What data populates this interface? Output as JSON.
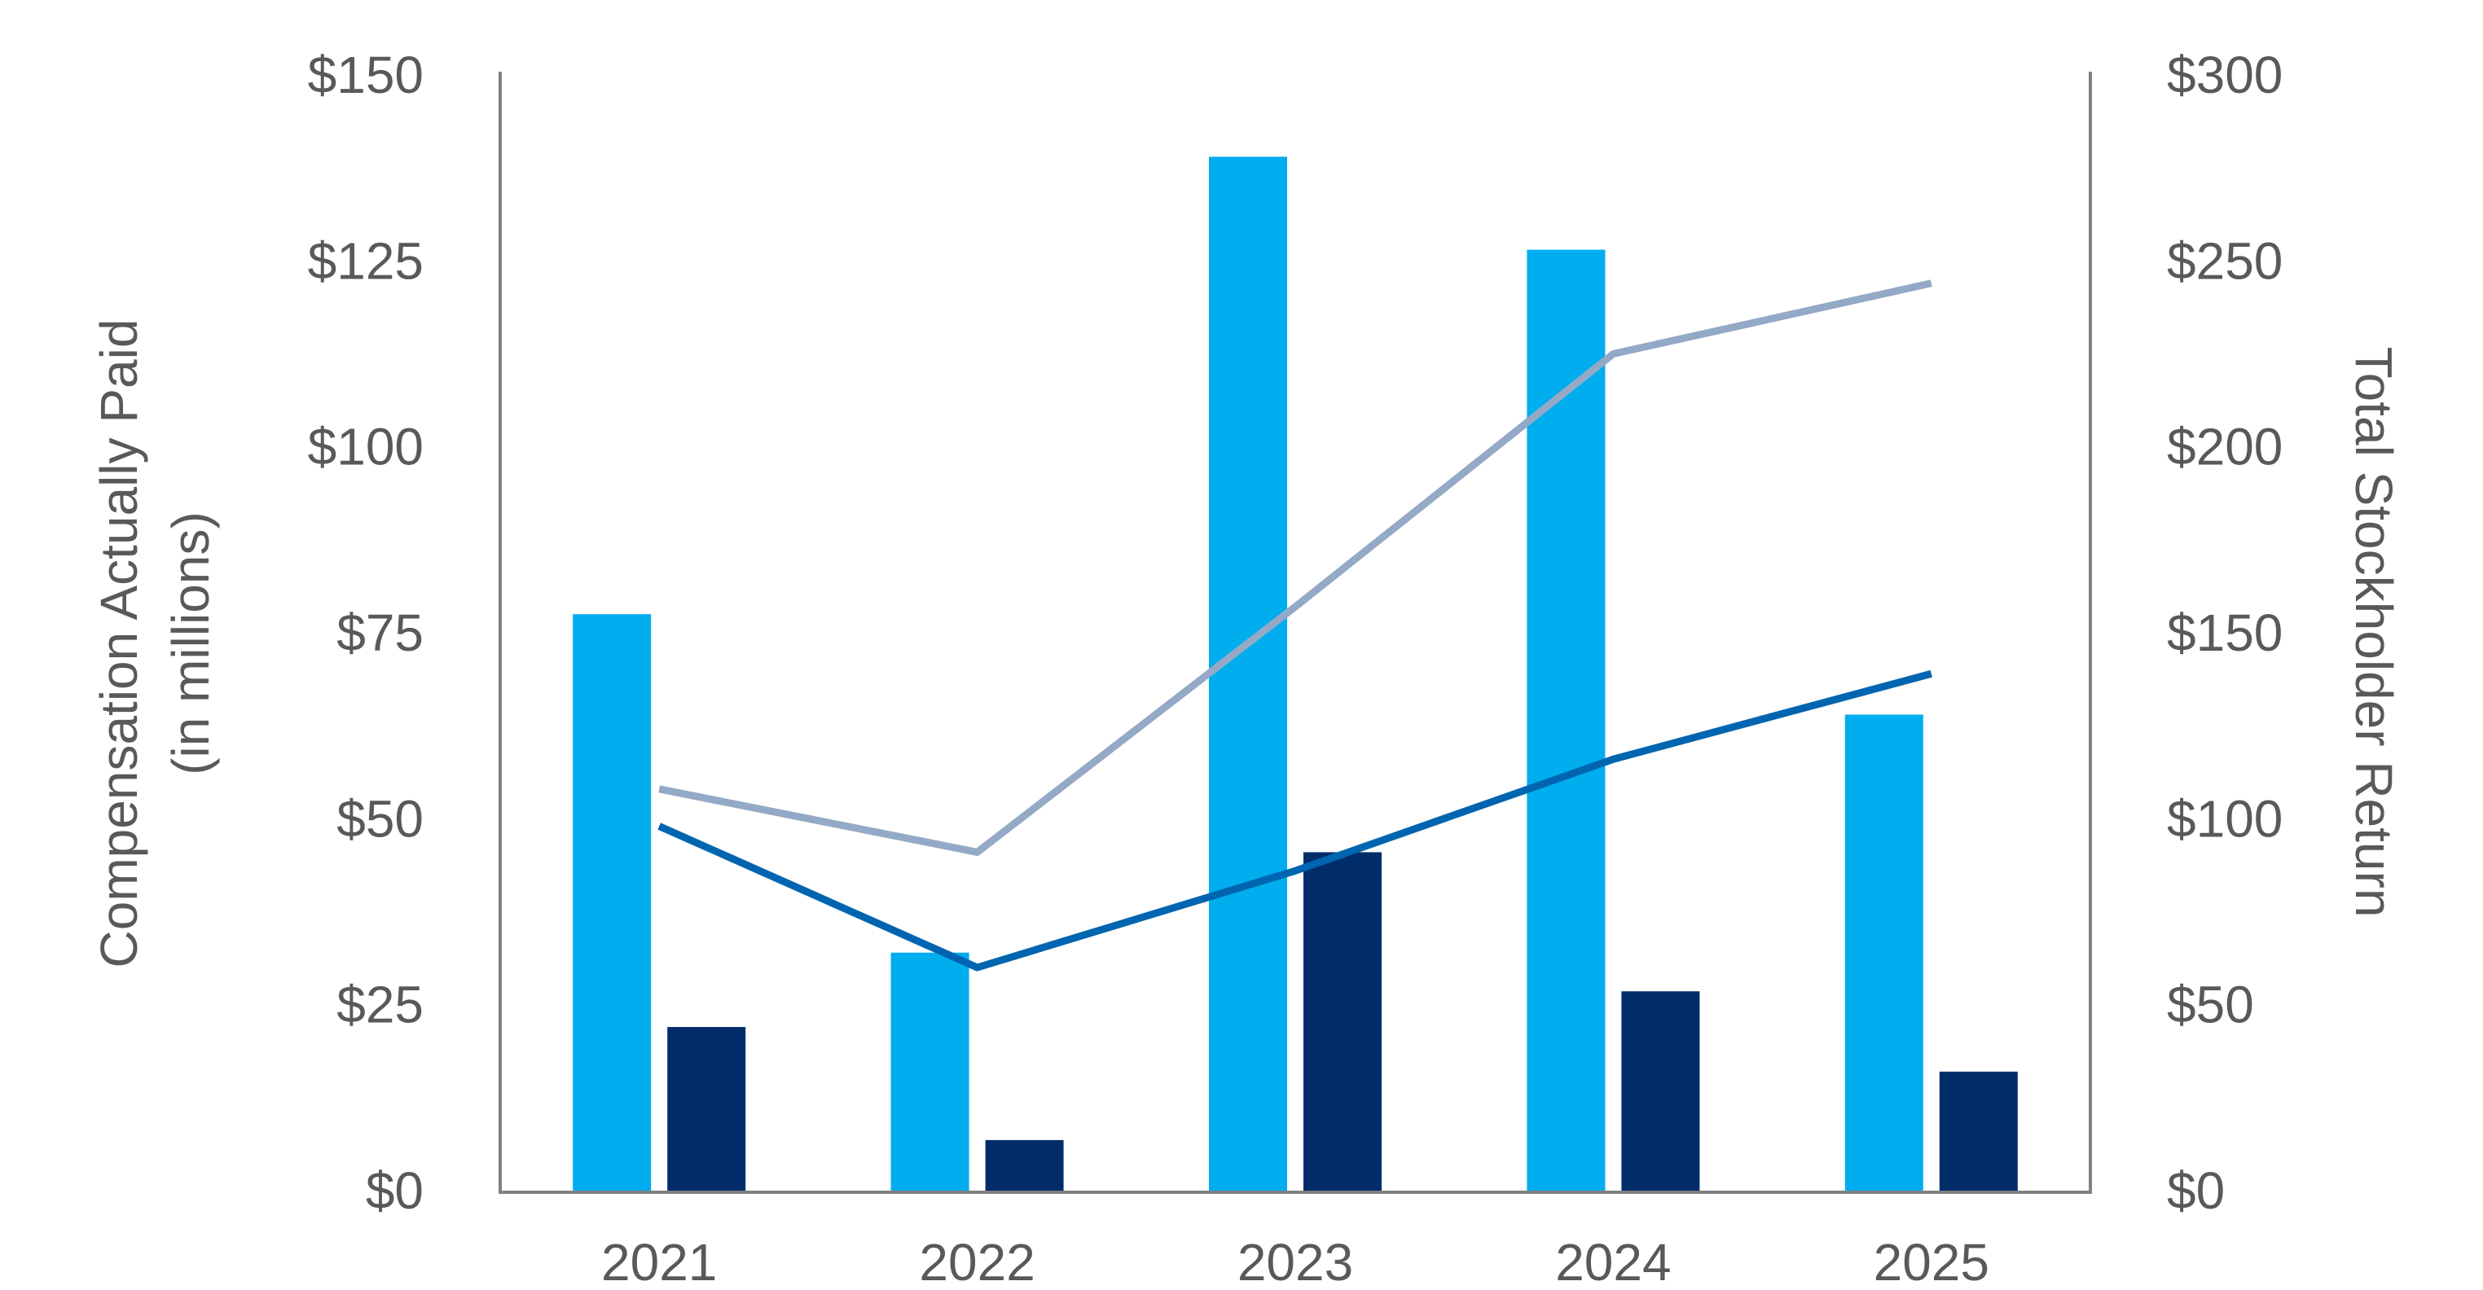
{
  "chart_data": {
    "type": "bar",
    "categories": [
      "2021",
      "2022",
      "2023",
      "2024",
      "2025"
    ],
    "series": [
      {
        "kind": "bar",
        "axis": "left",
        "color": "#00ADEF",
        "values": [
          77.5,
          32.0,
          139.0,
          126.5,
          64.0
        ]
      },
      {
        "kind": "bar",
        "axis": "left",
        "color": "#002D6A",
        "values": [
          22.0,
          6.8,
          45.5,
          26.8,
          16.0
        ]
      },
      {
        "kind": "line",
        "axis": "right",
        "color": "#94A9C6",
        "values": [
          108,
          91,
          157,
          225,
          244
        ]
      },
      {
        "kind": "line",
        "axis": "right",
        "color": "#0065B0",
        "values": [
          98,
          60,
          86,
          116,
          139
        ]
      }
    ],
    "y_left": {
      "label_line1": "Compensation Actually Paid",
      "label_line2": "(in millions)",
      "ylim": [
        0,
        150
      ],
      "ticks": [
        0,
        25,
        50,
        75,
        100,
        125,
        150
      ],
      "tick_labels": [
        "$0",
        "$25",
        "$50",
        "$75",
        "$100",
        "$125",
        "$150"
      ]
    },
    "y_right": {
      "label": "Total Stockholder Return",
      "ylim": [
        0,
        300
      ],
      "ticks": [
        0,
        50,
        100,
        150,
        200,
        250,
        300
      ],
      "tick_labels": [
        "$0",
        "$50",
        "$100",
        "$150",
        "$200",
        "$250",
        "$300"
      ]
    },
    "grid": false,
    "legend": "none",
    "axis_color": "#808080"
  }
}
